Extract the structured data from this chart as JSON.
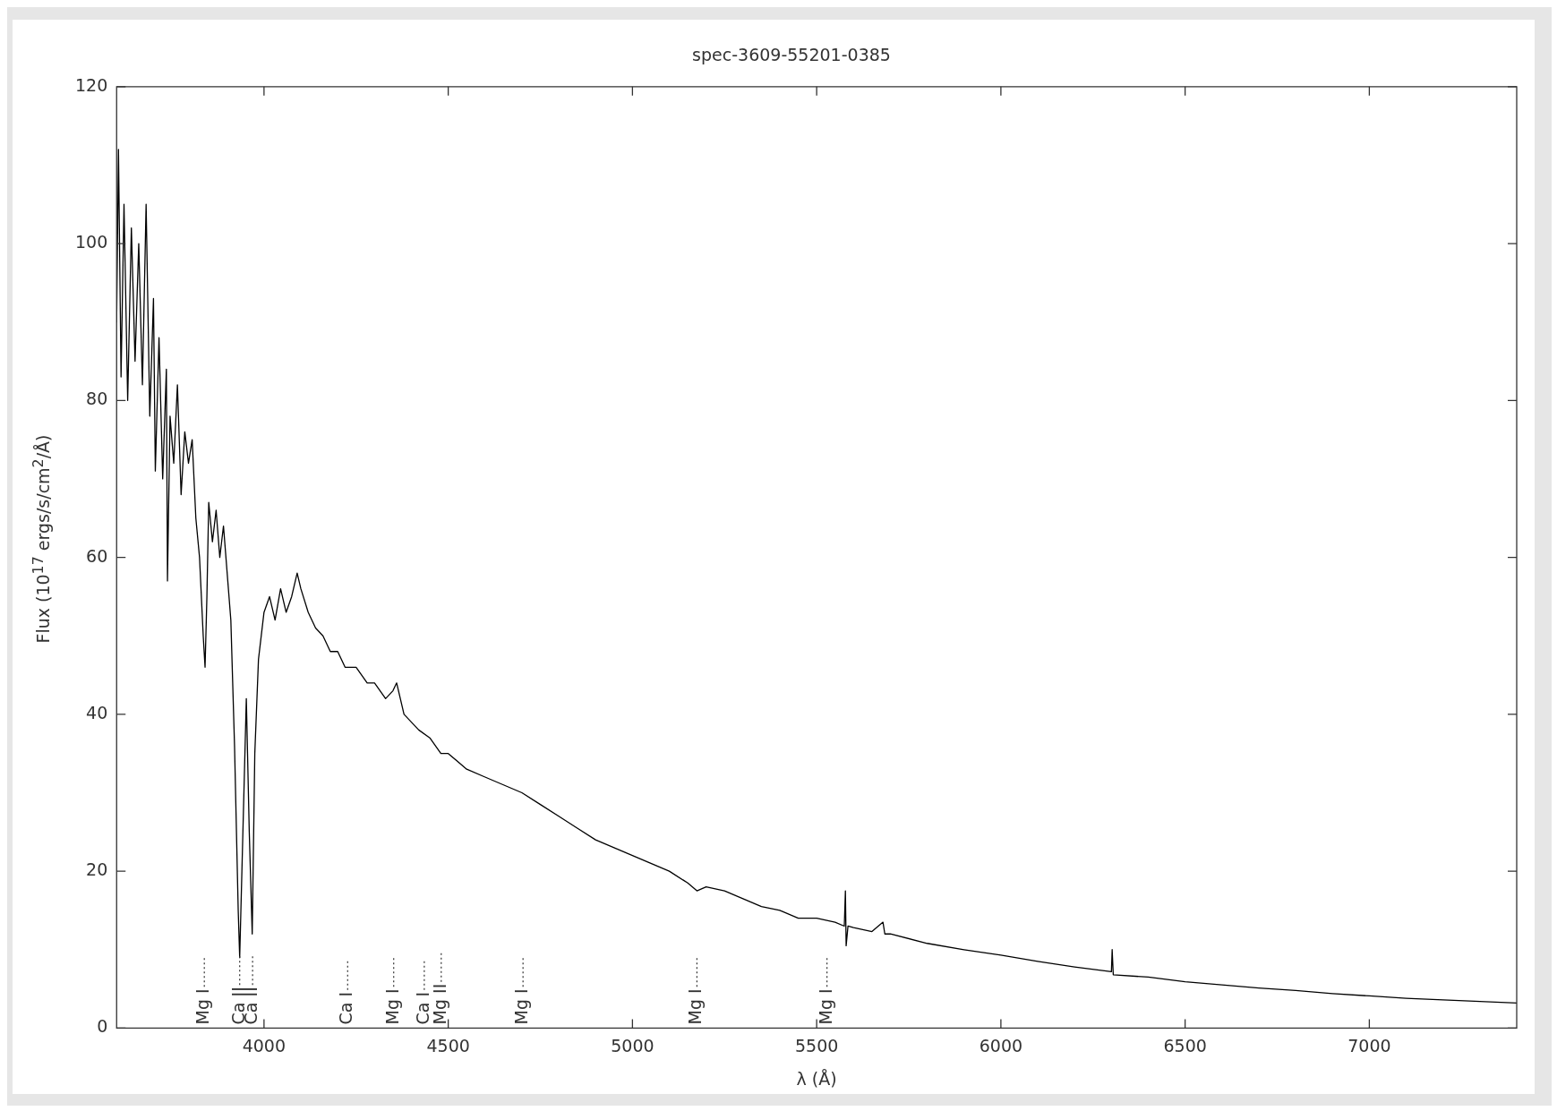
{
  "chart_data": {
    "type": "line",
    "title": "spec-3609-55201-0385",
    "xlabel": "λ (Å)",
    "ylabel": "Flux (10$^{17}$ ergs/s/cm$^{2}$/Å)",
    "xlim": [
      3600,
      7400
    ],
    "xticks": [
      4000,
      4500,
      5000,
      5500,
      6000,
      6500,
      7000
    ],
    "ylim": [
      0,
      120
    ],
    "yticks": [
      0,
      20,
      40,
      60,
      80,
      100,
      120
    ],
    "grid": false,
    "legend": false,
    "marker": "none",
    "line_style": "solid",
    "series": [
      {
        "color": "#000000",
        "x": [
          3600,
          3605,
          3612,
          3620,
          3630,
          3640,
          3650,
          3660,
          3670,
          3680,
          3690,
          3700,
          3705,
          3715,
          3725,
          3735,
          3738,
          3745,
          3755,
          3765,
          3775,
          3785,
          3795,
          3805,
          3815,
          3825,
          3835,
          3840,
          3845,
          3850,
          3860,
          3870,
          3880,
          3890,
          3900,
          3910,
          3920,
          3930,
          3934,
          3940,
          3952,
          3960,
          3968,
          3975,
          3985,
          4000,
          4015,
          4030,
          4045,
          4060,
          4075,
          4090,
          4100,
          4120,
          4140,
          4160,
          4180,
          4200,
          4220,
          4250,
          4280,
          4300,
          4330,
          4350,
          4360,
          4380,
          4400,
          4420,
          4450,
          4480,
          4500,
          4550,
          4600,
          4650,
          4700,
          4750,
          4800,
          4850,
          4900,
          4950,
          5000,
          5050,
          5100,
          5150,
          5175,
          5200,
          5250,
          5300,
          5350,
          5400,
          5450,
          5500,
          5550,
          5575,
          5578,
          5580,
          5585,
          5600,
          5650,
          5680,
          5685,
          5700,
          5800,
          5900,
          6000,
          6100,
          6200,
          6300,
          6302,
          6305,
          6400,
          6500,
          6600,
          6700,
          6800,
          6900,
          7000,
          7100,
          7200,
          7300,
          7400
        ],
        "values": [
          90,
          112,
          83,
          105,
          80,
          102,
          85,
          100,
          82,
          105,
          78,
          93,
          71,
          88,
          70,
          84,
          57,
          78,
          72,
          82,
          68,
          76,
          72,
          75,
          65,
          60,
          50,
          46,
          55,
          67,
          62,
          66,
          60,
          64,
          58,
          52,
          36,
          15,
          9,
          20,
          42,
          25,
          12,
          35,
          47,
          53,
          55,
          52,
          56,
          53,
          55,
          58,
          56,
          53,
          51,
          50,
          48,
          48,
          46,
          46,
          44,
          44,
          42,
          43,
          44,
          40,
          39,
          38,
          37,
          35,
          35,
          33,
          32,
          31,
          30,
          28.5,
          27,
          25.5,
          24,
          23,
          22,
          21,
          20,
          18.5,
          17.5,
          18,
          17.5,
          16.5,
          15.5,
          15,
          14,
          14,
          13.5,
          13,
          17.5,
          10.5,
          13,
          12.8,
          12.3,
          13.5,
          12,
          12,
          10.8,
          10,
          9.3,
          8.5,
          7.8,
          7.2,
          10,
          6.8,
          6.5,
          5.9,
          5.5,
          5.1,
          4.8,
          4.4,
          4.1,
          3.8,
          3.6,
          3.4,
          3.2
        ]
      }
    ],
    "ref_lines": [
      {
        "axis": "x",
        "value": 3838,
        "label": "Mg I",
        "line_style": "dotted"
      },
      {
        "axis": "x",
        "value": 3934,
        "label": "Ca II",
        "line_style": "dotted"
      },
      {
        "axis": "x",
        "value": 3969,
        "label": "Ca II",
        "line_style": "dotted"
      },
      {
        "axis": "x",
        "value": 4227,
        "label": "Ca I",
        "line_style": "dotted"
      },
      {
        "axis": "x",
        "value": 4352,
        "label": "Mg I",
        "line_style": "dotted"
      },
      {
        "axis": "x",
        "value": 4435,
        "label": "Ca I",
        "line_style": "dotted"
      },
      {
        "axis": "x",
        "value": 4481,
        "label": "Mg II",
        "line_style": "dotted"
      },
      {
        "axis": "x",
        "value": 4703,
        "label": "Mg I",
        "line_style": "dotted"
      },
      {
        "axis": "x",
        "value": 5175,
        "label": "Mg I",
        "line_style": "dotted"
      },
      {
        "axis": "x",
        "value": 5528,
        "label": "Mg I",
        "line_style": "dotted"
      }
    ]
  }
}
